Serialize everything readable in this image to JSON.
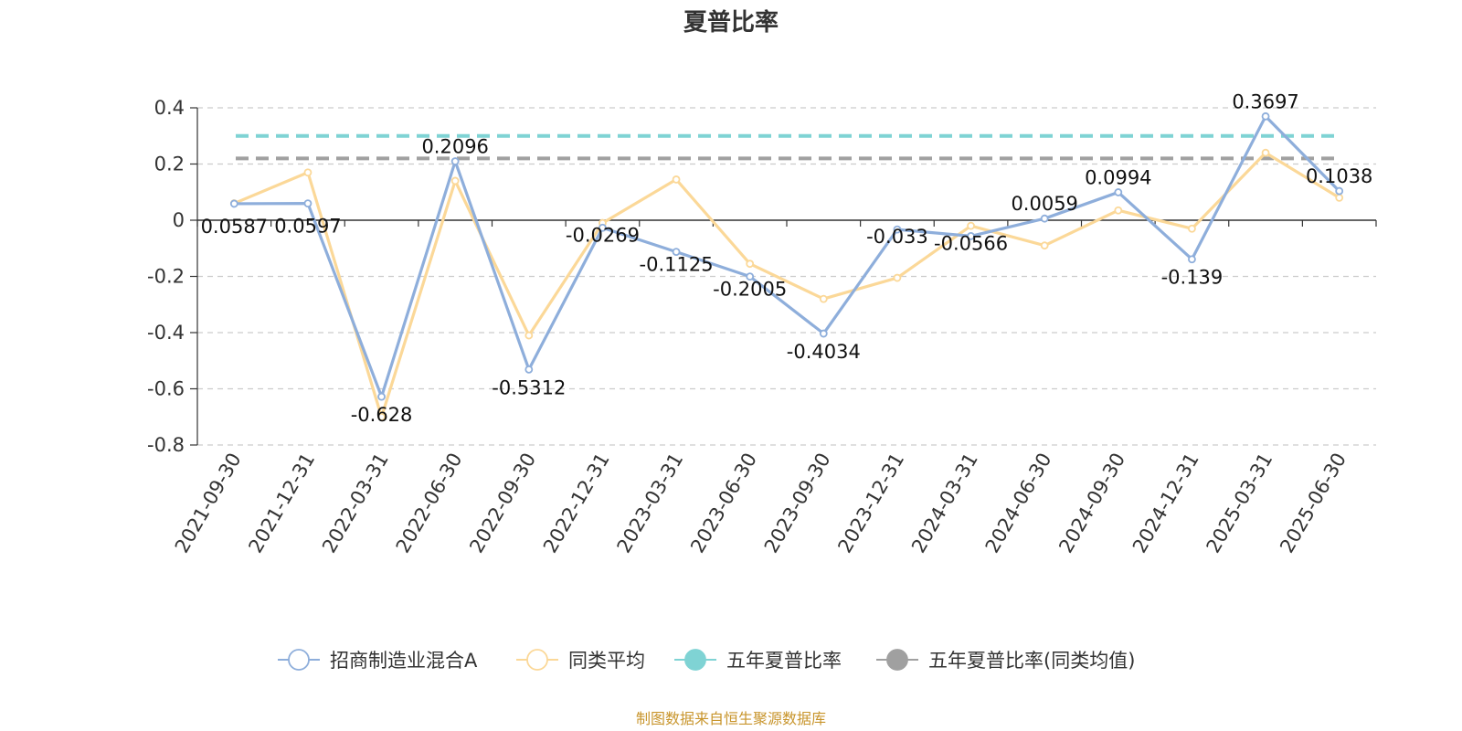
{
  "chart_data": {
    "type": "line",
    "title": "夏普比率",
    "categories": [
      "2021-09-30",
      "2021-12-31",
      "2022-03-31",
      "2022-06-30",
      "2022-09-30",
      "2022-12-31",
      "2023-03-31",
      "2023-06-30",
      "2023-09-30",
      "2023-12-31",
      "2024-03-31",
      "2024-06-30",
      "2024-09-30",
      "2024-12-31",
      "2025-03-31",
      "2025-06-30"
    ],
    "ylim": [
      -0.8,
      0.4
    ],
    "yticks": [
      0.4,
      0.2,
      0,
      -0.2,
      -0.4,
      -0.6,
      -0.8
    ],
    "ytick_labels": [
      "0.4",
      "0.2",
      "0",
      "-0.2",
      "-0.4",
      "-0.6",
      "-0.8"
    ],
    "grid": true,
    "legend_position": "bottom-center",
    "series": [
      {
        "name": "招商制造业混合A",
        "color": "#8eaedb",
        "values": [
          0.0587,
          0.0597,
          -0.628,
          0.2096,
          -0.5312,
          -0.0269,
          -0.1125,
          -0.2005,
          -0.4034,
          -0.033,
          -0.0566,
          0.0059,
          0.0994,
          -0.139,
          0.3697,
          0.1038
        ],
        "labels": [
          "0.0587",
          "0.0597",
          "-0.628",
          "0.2096",
          "-0.5312",
          "-0.0269",
          "-0.1125",
          "-0.2005",
          "-0.4034",
          "-0.033",
          "-0.0566",
          "0.0059",
          "0.0994",
          "-0.139",
          "0.3697",
          "0.1038"
        ]
      },
      {
        "name": "同类平均",
        "color": "#fbd898",
        "values": [
          0.06,
          0.17,
          -0.7,
          0.14,
          -0.41,
          -0.01,
          0.145,
          -0.155,
          -0.28,
          -0.205,
          -0.02,
          -0.09,
          0.035,
          -0.03,
          0.24,
          0.08
        ]
      },
      {
        "name": "五年夏普比率",
        "color": "#7fd3d4",
        "constant": 0.3
      },
      {
        "name": "五年夏普比率(同类均值)",
        "color": "#a0a0a0",
        "constant": 0.22
      }
    ]
  },
  "source_text": "制图数据来自恒生聚源数据库",
  "source_color": "#c8952c"
}
